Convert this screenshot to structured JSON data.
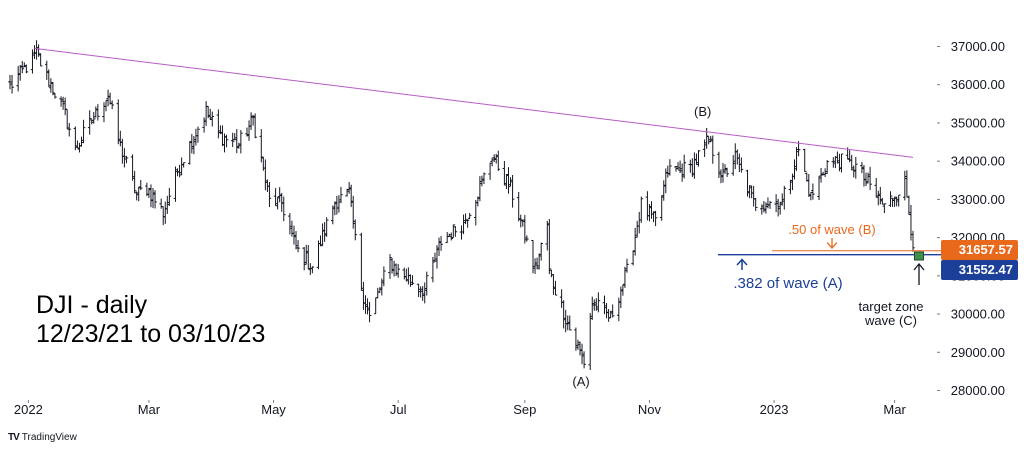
{
  "footer": {
    "brand": "TradingView",
    "logo": "TV"
  },
  "chart_data": {
    "type": "ohlc",
    "title_lines": [
      "DJI - daily",
      "12/23/21 to 03/10/23"
    ],
    "ylim": [
      27500,
      37500
    ],
    "y_ticks": [
      "37000.00",
      "36000.00",
      "35000.00",
      "34000.00",
      "33000.00",
      "32000.00",
      "31000.00",
      "30000.00",
      "29000.00",
      "28000.00"
    ],
    "y_tick_values": [
      37000,
      36000,
      35000,
      34000,
      33000,
      32000,
      31000,
      30000,
      29000,
      28000
    ],
    "x_ticks": [
      {
        "label": "2022",
        "date": "2022-01-01"
      },
      {
        "label": "Mar",
        "date": "2022-03-01"
      },
      {
        "label": "May",
        "date": "2022-05-01"
      },
      {
        "label": "Jul",
        "date": "2022-07-01"
      },
      {
        "label": "Sep",
        "date": "2022-09-01"
      },
      {
        "label": "Nov",
        "date": "2022-11-01"
      },
      {
        "label": "2023",
        "date": "2023-01-01"
      },
      {
        "label": "Mar",
        "date": "2023-03-01"
      }
    ],
    "date_range": [
      "2021-12-23",
      "2023-03-10"
    ],
    "close_path": [
      [
        "2021-12-23",
        35950
      ],
      [
        "2022-01-05",
        36800
      ],
      [
        "2022-01-10",
        36200
      ],
      [
        "2022-01-18",
        35400
      ],
      [
        "2022-01-24",
        34300
      ],
      [
        "2022-01-28",
        34700
      ],
      [
        "2022-02-09",
        35750
      ],
      [
        "2022-02-14",
        34550
      ],
      [
        "2022-02-23",
        33150
      ],
      [
        "2022-02-28",
        33300
      ],
      [
        "2022-03-08",
        32650
      ],
      [
        "2022-03-16",
        33900
      ],
      [
        "2022-03-29",
        35300
      ],
      [
        "2022-04-05",
        34650
      ],
      [
        "2022-04-14",
        34450
      ],
      [
        "2022-04-21",
        35100
      ],
      [
        "2022-04-29",
        32950
      ],
      [
        "2022-05-05",
        32900
      ],
      [
        "2022-05-12",
        31700
      ],
      [
        "2022-05-20",
        31250
      ],
      [
        "2022-05-31",
        32950
      ],
      [
        "2022-06-07",
        33150
      ],
      [
        "2022-06-13",
        30700
      ],
      [
        "2022-06-17",
        29900
      ],
      [
        "2022-06-27",
        31400
      ],
      [
        "2022-07-01",
        31100
      ],
      [
        "2022-07-14",
        30650
      ],
      [
        "2022-07-22",
        31900
      ],
      [
        "2022-08-02",
        32400
      ],
      [
        "2022-08-10",
        33300
      ],
      [
        "2022-08-16",
        34150
      ],
      [
        "2022-08-25",
        33300
      ],
      [
        "2022-09-06",
        31150
      ],
      [
        "2022-09-12",
        32350
      ],
      [
        "2022-09-13",
        31100
      ],
      [
        "2022-09-23",
        29600
      ],
      [
        "2022-09-30",
        28750
      ],
      [
        "2022-10-04",
        30300
      ],
      [
        "2022-10-13",
        29900
      ],
      [
        "2022-10-21",
        31100
      ],
      [
        "2022-10-28",
        32850
      ],
      [
        "2022-11-04",
        32400
      ],
      [
        "2022-11-10",
        33750
      ],
      [
        "2022-11-21",
        33800
      ],
      [
        "2022-11-30",
        34550
      ],
      [
        "2022-12-07",
        33600
      ],
      [
        "2022-12-13",
        34100
      ],
      [
        "2022-12-22",
        32900
      ],
      [
        "2023-01-05",
        32950
      ],
      [
        "2023-01-13",
        34300
      ],
      [
        "2023-01-19",
        33050
      ],
      [
        "2023-01-27",
        33950
      ],
      [
        "2023-02-02",
        34000
      ],
      [
        "2023-02-10",
        33850
      ],
      [
        "2023-02-24",
        32800
      ],
      [
        "2023-03-06",
        33450
      ],
      [
        "2023-03-10",
        31900
      ]
    ],
    "resistance_line": {
      "from": [
        "2022-01-04",
        36950
      ],
      "to": [
        "2023-03-10",
        34100
      ],
      "color": "#b85cc6"
    },
    "fib_levels": [
      {
        "label": ".382 of wave (A)",
        "value": 31552.47,
        "tag": "31552.47",
        "color": "#1c3f99"
      },
      {
        "label": ".50 of wave (B)",
        "value": 31657.57,
        "tag": "31657.57",
        "color": "#e8681c"
      }
    ],
    "wave_labels": [
      {
        "text": "(A)",
        "date": "2022-09-30",
        "value": 28650,
        "position": "below"
      },
      {
        "text": "(B)",
        "date": "2022-11-30",
        "value": 34900,
        "position": "above"
      }
    ],
    "target_zone": {
      "label_lines": [
        "target zone",
        "wave (C)"
      ],
      "date": "2023-03-10",
      "value": 31600,
      "color": "#3f8f4d"
    }
  }
}
